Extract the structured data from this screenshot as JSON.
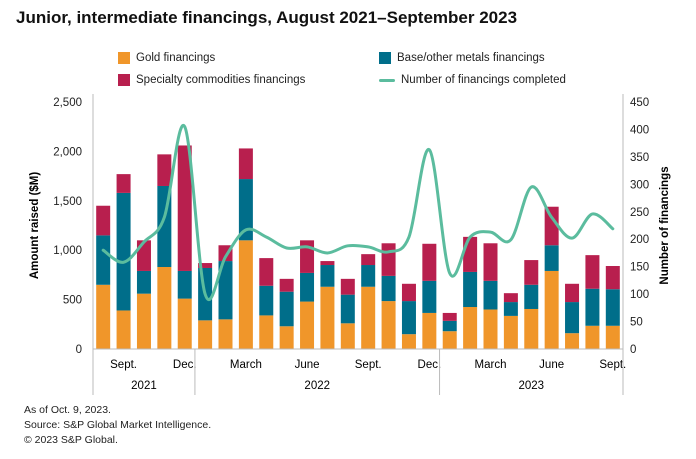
{
  "chart_data": {
    "type": "bar",
    "stacked": true,
    "title": "Junior, intermediate financings, August 2021–September 2023",
    "ylabel": "Amount raised ($M)",
    "y2label": "Number of financings",
    "ylim": [
      0,
      2500
    ],
    "y2lim": [
      0,
      450
    ],
    "yticks": [
      "0",
      "500",
      "1,000",
      "1,500",
      "2,000",
      "2,500"
    ],
    "y2ticks": [
      "0",
      "50",
      "100",
      "150",
      "200",
      "250",
      "300",
      "350",
      "400",
      "450"
    ],
    "yticks_values": [
      0,
      500,
      1000,
      1500,
      2000,
      2500
    ],
    "y2ticks_values": [
      0,
      50,
      100,
      150,
      200,
      250,
      300,
      350,
      400,
      450
    ],
    "categories": [
      "Aug 2021",
      "Sep 2021",
      "Oct 2021",
      "Nov 2021",
      "Dec 2021",
      "Jan 2022",
      "Feb 2022",
      "Mar 2022",
      "Apr 2022",
      "May 2022",
      "Jun 2022",
      "Jul 2022",
      "Aug 2022",
      "Sep 2022",
      "Oct 2022",
      "Nov 2022",
      "Dec 2022",
      "Jan 2023",
      "Feb 2023",
      "Mar 2023",
      "Apr 2023",
      "May 2023",
      "Jun 2023",
      "Jul 2023",
      "Aug 2023",
      "Sep 2023"
    ],
    "month_labels": [
      {
        "index": 1,
        "label": "Sept."
      },
      {
        "index": 4,
        "label": "Dec."
      },
      {
        "index": 7,
        "label": "March"
      },
      {
        "index": 10,
        "label": "June"
      },
      {
        "index": 13,
        "label": "Sept."
      },
      {
        "index": 16,
        "label": "Dec."
      },
      {
        "index": 19,
        "label": "March"
      },
      {
        "index": 22,
        "label": "June"
      },
      {
        "index": 25,
        "label": "Sept."
      }
    ],
    "year_labels": [
      {
        "label": "2021",
        "start": 0,
        "end": 4
      },
      {
        "label": "2022",
        "start": 5,
        "end": 16
      },
      {
        "label": "2023",
        "start": 17,
        "end": 25
      }
    ],
    "series": [
      {
        "name": "Gold financings",
        "color": "#F0962A",
        "axis": "left",
        "type": "bar",
        "values": [
          650,
          390,
          560,
          830,
          510,
          290,
          300,
          1100,
          340,
          230,
          480,
          630,
          260,
          630,
          485,
          150,
          365,
          180,
          425,
          400,
          335,
          405,
          790,
          160,
          235,
          235
        ]
      },
      {
        "name": "Base/other metals financings",
        "color": "#006E8A",
        "axis": "left",
        "type": "bar",
        "values": [
          500,
          1190,
          230,
          820,
          280,
          530,
          590,
          620,
          300,
          350,
          290,
          220,
          290,
          220,
          255,
          335,
          325,
          105,
          355,
          290,
          140,
          245,
          260,
          315,
          375,
          370
        ]
      },
      {
        "name": "Specialty commodities financings",
        "color": "#B81F4E",
        "axis": "left",
        "type": "bar",
        "values": [
          300,
          190,
          310,
          320,
          1270,
          50,
          160,
          310,
          280,
          130,
          330,
          40,
          160,
          110,
          330,
          175,
          375,
          80,
          355,
          380,
          90,
          250,
          390,
          185,
          340,
          235
        ]
      },
      {
        "name": "Number of financings completed",
        "color": "#5BBC9E",
        "axis": "right",
        "type": "line",
        "values": [
          180,
          158,
          195,
          240,
          405,
          100,
          168,
          217,
          204,
          184,
          186,
          175,
          188,
          186,
          177,
          204,
          363,
          138,
          204,
          213,
          199,
          295,
          240,
          202,
          246,
          219
        ]
      }
    ],
    "legend": "top"
  },
  "footer": {
    "as_of": "As of Oct. 9, 2023.",
    "source": "Source: S&P Global Market Intelligence.",
    "copyright": "© 2023 S&P Global."
  }
}
